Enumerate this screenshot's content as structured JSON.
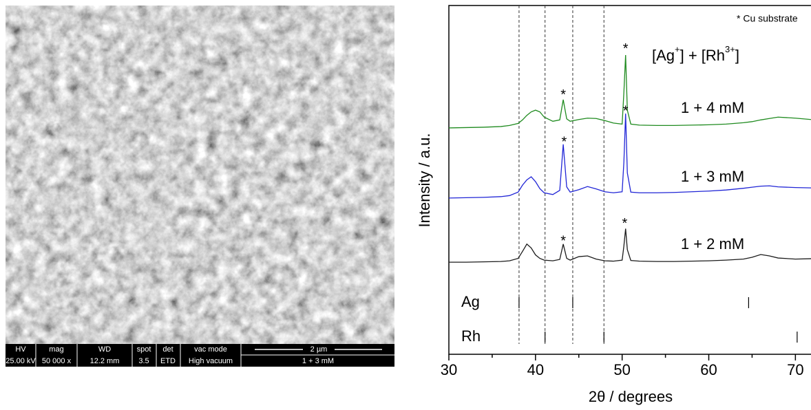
{
  "sem_image": {
    "info_headers": [
      "HV",
      "mag",
      "WD",
      "spot",
      "det",
      "vac mode"
    ],
    "info_values": [
      "25.00 kV",
      "50 000 x",
      "12.2 mm",
      "3.5",
      "ETD",
      "High vacuum"
    ],
    "scale_bar": "2 µm",
    "sample": "1 + 3 mM"
  },
  "chart_data": {
    "type": "line",
    "xlabel": "2θ / degrees",
    "ylabel": "Intensity / a.u.",
    "note": "* Cu substrate",
    "legend_title_parts": [
      "[Ag",
      "+",
      "] + [Rh",
      "3+",
      "]"
    ],
    "xlim": [
      30,
      71.8
    ],
    "ylim": [
      0,
      100
    ],
    "xticks": [
      30,
      40,
      50,
      60,
      70
    ],
    "xminor_ticks": [
      35,
      45,
      55,
      65
    ],
    "x": [
      30,
      32,
      34,
      36,
      37,
      38,
      38.5,
      39,
      39.5,
      40,
      40.5,
      41,
      42,
      42.8,
      43.2,
      43.6,
      44,
      45,
      46,
      47,
      48,
      49,
      50,
      50.2,
      50.4,
      50.6,
      51,
      52,
      54,
      56,
      58,
      60,
      62,
      64,
      65,
      66,
      67,
      68,
      70,
      71.8
    ],
    "series": [
      {
        "name": "1 + 4 mM",
        "color": "#1e8a1e",
        "values": [
          64.9,
          65.0,
          65.1,
          65.3,
          65.6,
          66.2,
          67.2,
          68.5,
          69.5,
          70.0,
          69.5,
          68.0,
          66.8,
          67.2,
          73.0,
          67.5,
          66.8,
          67.3,
          67.7,
          67.6,
          67.0,
          66.3,
          66.0,
          75,
          85.8,
          70,
          66.0,
          65.7,
          65.6,
          65.6,
          65.7,
          65.8,
          66.0,
          66.4,
          66.7,
          67.2,
          67.6,
          68.0,
          67.7,
          67.3
        ]
      },
      {
        "name": "1 + 3 mM",
        "color": "#1f24d6",
        "values": [
          44.8,
          44.9,
          45.0,
          45.2,
          45.5,
          46.5,
          48.5,
          50.0,
          50.9,
          49.5,
          47.5,
          46.3,
          45.8,
          47,
          60.2,
          48,
          46.5,
          47.2,
          48.1,
          47.4,
          46.6,
          46.3,
          46.6,
          55,
          69.0,
          52,
          46.5,
          46.3,
          46.3,
          46.4,
          46.6,
          46.8,
          47.1,
          47.6,
          47.9,
          48.2,
          48.3,
          48.0,
          47.8,
          47.7
        ]
      },
      {
        "name": "1 + 2 mM",
        "color": "#1a1a1a",
        "values": [
          26.4,
          26.4,
          26.5,
          26.6,
          26.8,
          27.5,
          29.5,
          31.6,
          30.5,
          28.5,
          27.5,
          27.0,
          26.8,
          27.2,
          31.6,
          27.5,
          27.0,
          28.0,
          28.2,
          27.3,
          26.8,
          26.7,
          27.0,
          31,
          36.0,
          30,
          26.9,
          26.7,
          26.6,
          26.6,
          26.7,
          26.8,
          27.0,
          27.3,
          27.8,
          28.6,
          28.2,
          27.6,
          27.3,
          27.4
        ]
      }
    ],
    "annotations": [
      {
        "text": "*",
        "x": 43.2,
        "y": 75
      },
      {
        "text": "*",
        "x": 50.4,
        "y": 88.2
      },
      {
        "text": "*",
        "x": 43.3,
        "y": 61.5
      },
      {
        "text": "*",
        "x": 50.4,
        "y": 70.4
      },
      {
        "text": "*",
        "x": 43.2,
        "y": 33.1
      },
      {
        "text": "*",
        "x": 50.3,
        "y": 38.1
      }
    ],
    "dashed_lines": [
      38.1,
      41.1,
      44.3,
      47.9
    ],
    "references": [
      {
        "name": "Ag",
        "positions": [
          38.1,
          44.3,
          64.6
        ]
      },
      {
        "name": "Rh",
        "positions": [
          41.1,
          47.9,
          70.2
        ]
      }
    ]
  }
}
